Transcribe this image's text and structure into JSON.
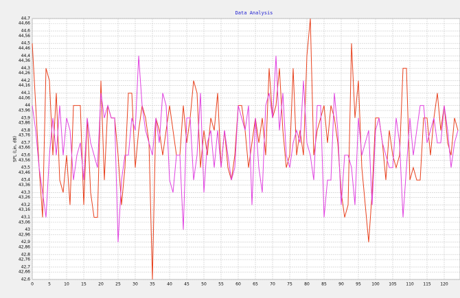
{
  "chart_data": {
    "type": "line",
    "title": "Data Analysis",
    "y_label": "SPL (Lin, dB)",
    "x": [
      0,
      1,
      2,
      3,
      4,
      5,
      6,
      7,
      8,
      9,
      10,
      11,
      12,
      13,
      14,
      15,
      16,
      17,
      18,
      19,
      20,
      21,
      22,
      23,
      24,
      25,
      26,
      27,
      28,
      29,
      30,
      31,
      32,
      33,
      34,
      35,
      36,
      37,
      38,
      39,
      40,
      41,
      42,
      43,
      44,
      45,
      46,
      47,
      48,
      49,
      50,
      51,
      52,
      53,
      54,
      55,
      56,
      57,
      58,
      59,
      60,
      61,
      62,
      63,
      64,
      65,
      66,
      67,
      68,
      69,
      70,
      71,
      72,
      73,
      74,
      75,
      76,
      77,
      78,
      79,
      80,
      81,
      82,
      83,
      84,
      85,
      86,
      87,
      88,
      89,
      90,
      91,
      92,
      93,
      94,
      95,
      96,
      97,
      98,
      99,
      100,
      101,
      102,
      103,
      104,
      105,
      106,
      107,
      108,
      109,
      110,
      111,
      112,
      113,
      114,
      115,
      116,
      117,
      118,
      119,
      120,
      121,
      122,
      123,
      124
    ],
    "series": [
      {
        "color": "#e8401c",
        "values": [
          44.5,
          44.0,
          43.5,
          43.1,
          44.3,
          44.2,
          43.6,
          44.1,
          43.4,
          43.3,
          43.6,
          43.2,
          44.0,
          44.0,
          44.0,
          43.2,
          43.9,
          43.3,
          43.1,
          43.1,
          44.2,
          43.4,
          44.0,
          43.9,
          43.9,
          43.6,
          43.2,
          43.5,
          44.1,
          44.1,
          43.5,
          43.8,
          44.0,
          43.9,
          43.7,
          42.6,
          43.9,
          43.8,
          43.6,
          43.8,
          44.0,
          43.8,
          43.6,
          43.6,
          44.0,
          43.7,
          43.9,
          44.2,
          44.1,
          43.5,
          43.8,
          43.6,
          43.9,
          43.8,
          44.1,
          43.5,
          43.8,
          43.5,
          43.4,
          43.6,
          44.0,
          44.0,
          43.8,
          43.5,
          43.7,
          43.9,
          43.7,
          43.9,
          43.6,
          44.3,
          43.9,
          44.0,
          44.3,
          43.8,
          43.5,
          43.6,
          44.3,
          43.6,
          43.8,
          43.6,
          44.4,
          44.7,
          43.6,
          43.8,
          43.9,
          44.0,
          43.7,
          44.0,
          43.9,
          43.7,
          43.3,
          43.1,
          43.2,
          44.5,
          43.9,
          44.2,
          43.5,
          43.2,
          42.9,
          43.3,
          43.9,
          43.9,
          43.7,
          43.4,
          43.8,
          43.6,
          43.5,
          43.6,
          44.3,
          44.3,
          43.4,
          43.5,
          43.4,
          43.4,
          43.9,
          43.9,
          43.6,
          43.9,
          44.1,
          43.8,
          44.0,
          43.7,
          43.6,
          43.9,
          43.8
        ]
      },
      {
        "color": "#e040e0",
        "values": [
          44.0,
          43.8,
          43.5,
          43.3,
          43.1,
          43.6,
          43.9,
          43.6,
          44.0,
          43.6,
          43.9,
          43.8,
          43.4,
          43.6,
          43.7,
          43.4,
          43.9,
          43.7,
          43.6,
          43.5,
          44.1,
          43.9,
          44.0,
          43.9,
          43.9,
          42.9,
          43.4,
          43.6,
          43.6,
          43.9,
          43.8,
          44.4,
          44.0,
          43.8,
          43.7,
          43.6,
          43.9,
          43.7,
          44.1,
          44.0,
          43.4,
          43.3,
          43.6,
          43.6,
          43.0,
          43.9,
          43.9,
          43.4,
          43.6,
          44.1,
          43.3,
          43.7,
          43.8,
          43.5,
          43.8,
          43.5,
          43.8,
          43.6,
          43.4,
          43.5,
          44.0,
          43.9,
          43.8,
          44.0,
          43.2,
          43.9,
          43.5,
          43.3,
          44.0,
          44.1,
          43.9,
          44.4,
          43.8,
          44.1,
          43.6,
          43.5,
          43.7,
          43.8,
          43.7,
          44.2,
          43.7,
          43.6,
          43.4,
          44.0,
          44.0,
          43.1,
          43.4,
          43.4,
          44.1,
          43.8,
          43.2,
          43.6,
          43.6,
          43.5,
          43.2,
          43.9,
          43.6,
          43.7,
          43.8,
          43.2,
          43.8,
          43.9,
          43.7,
          43.6,
          43.5,
          43.5,
          43.9,
          43.7,
          43.1,
          43.5,
          43.9,
          43.6,
          43.8,
          44.0,
          44.0,
          43.7,
          43.8,
          43.9,
          43.7,
          43.7,
          44.0,
          43.8,
          43.5,
          43.7,
          43.8
        ]
      }
    ],
    "xlim": [
      0,
      124.6
    ],
    "xticks": [
      0,
      5,
      10,
      15,
      20,
      25,
      30,
      35,
      40,
      45,
      50,
      55,
      60,
      65,
      70,
      75,
      80,
      85,
      90,
      95,
      100,
      105,
      110,
      115,
      120
    ],
    "ylim": [
      42.6,
      44.7
    ],
    "yticks": [
      {
        "value": 44.7,
        "label": "44,7"
      },
      {
        "value": 44.66,
        "label": "44,66"
      },
      {
        "value": 44.6,
        "label": "44,6"
      },
      {
        "value": 44.56,
        "label": "44,56"
      },
      {
        "value": 44.5,
        "label": "44,5"
      },
      {
        "value": 44.46,
        "label": "44,46"
      },
      {
        "value": 44.4,
        "label": "44,4"
      },
      {
        "value": 44.36,
        "label": "44,36"
      },
      {
        "value": 44.3,
        "label": "44,3"
      },
      {
        "value": 44.26,
        "label": "44,26"
      },
      {
        "value": 44.2,
        "label": "44,2"
      },
      {
        "value": 44.16,
        "label": "44,16"
      },
      {
        "value": 44.1,
        "label": "44,1"
      },
      {
        "value": 44.06,
        "label": "44,06"
      },
      44,
      {
        "value": 43.96,
        "label": "43,96"
      },
      {
        "value": 43.9,
        "label": "43,9"
      },
      {
        "value": 43.86,
        "label": "43,86"
      },
      {
        "value": 43.8,
        "label": "43,8"
      },
      {
        "value": 43.76,
        "label": "43,76"
      },
      {
        "value": 43.7,
        "label": "43,7"
      },
      {
        "value": 43.66,
        "label": "43,66"
      },
      {
        "value": 43.6,
        "label": "43,6"
      },
      {
        "value": 43.56,
        "label": "43,56"
      },
      {
        "value": 43.5,
        "label": "43,5"
      },
      {
        "value": 43.46,
        "label": "43,46"
      },
      {
        "value": 43.4,
        "label": "43,4"
      },
      {
        "value": 43.36,
        "label": "43,36"
      },
      {
        "value": 43.3,
        "label": "43,3"
      },
      {
        "value": 43.26,
        "label": "43,26"
      },
      {
        "value": 43.2,
        "label": "43,2"
      },
      {
        "value": 43.16,
        "label": "43,16"
      },
      {
        "value": 43.1,
        "label": "43,1"
      },
      {
        "value": 43.06,
        "label": "43,06"
      },
      43,
      {
        "value": 42.96,
        "label": "42,96"
      },
      {
        "value": 42.9,
        "label": "42,9"
      },
      {
        "value": 42.86,
        "label": "42,86"
      },
      {
        "value": 42.8,
        "label": "42,8"
      },
      {
        "value": 42.76,
        "label": "42,76"
      },
      {
        "value": 42.7,
        "label": "42,7"
      },
      {
        "value": 42.66,
        "label": "42,66"
      },
      {
        "value": 42.6,
        "label": "42,6"
      }
    ],
    "grid": true
  }
}
